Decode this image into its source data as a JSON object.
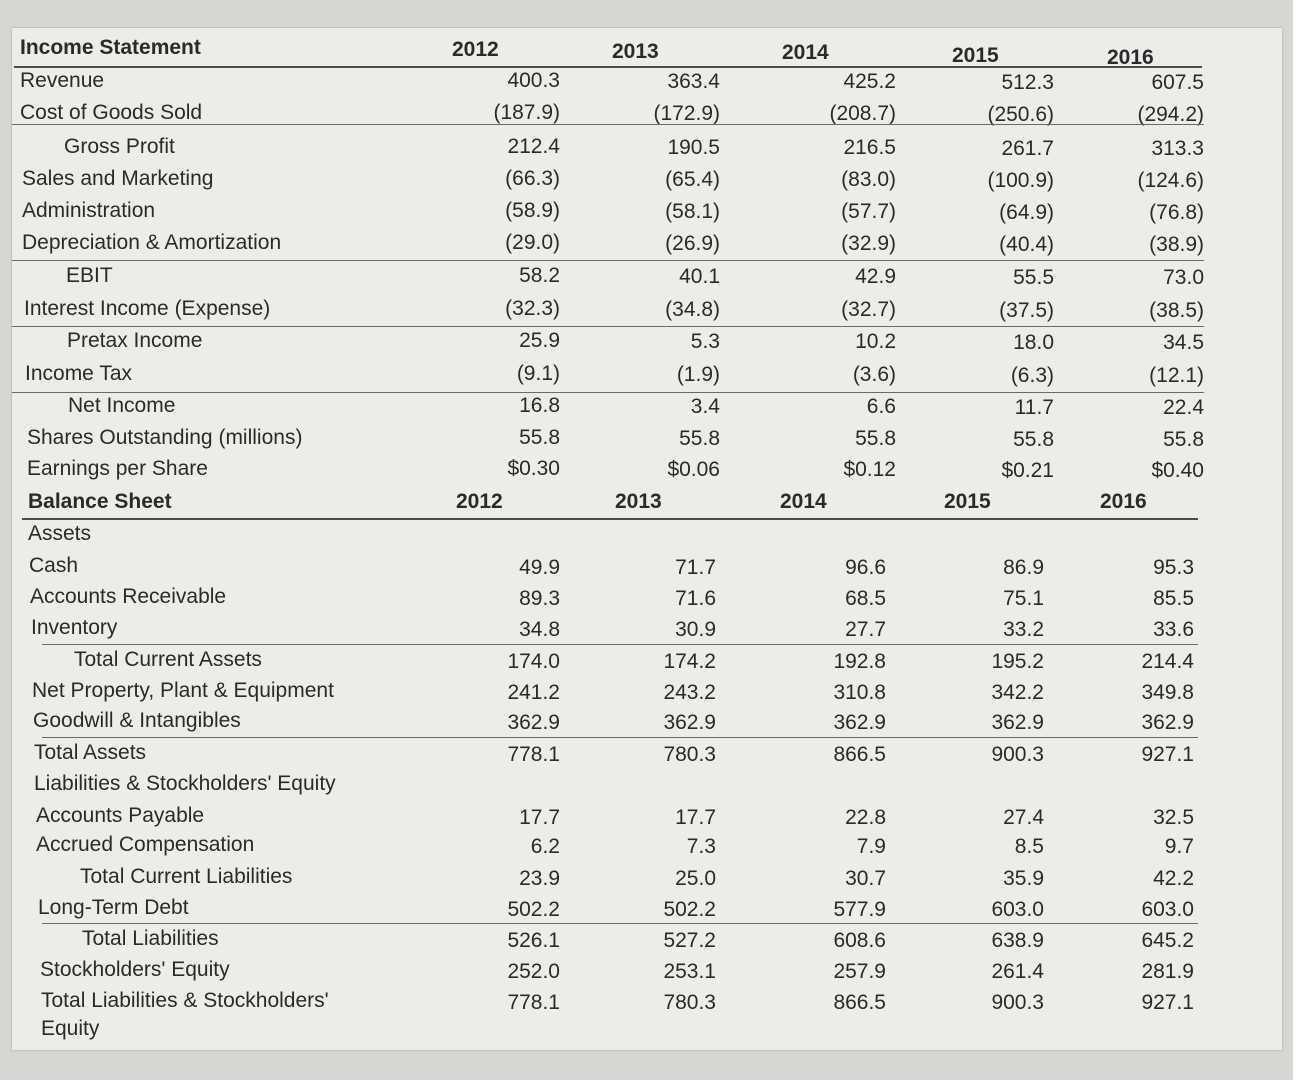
{
  "years": [
    "2012",
    "2013",
    "2014",
    "2015",
    "2016"
  ],
  "income_statement": {
    "title": "Income Statement",
    "rows": [
      {
        "label": "Revenue",
        "values": [
          "400.3",
          "363.4",
          "425.2",
          "512.3",
          "607.5"
        ]
      },
      {
        "label": "Cost of Goods Sold",
        "values": [
          "(187.9)",
          "(172.9)",
          "(208.7)",
          "(250.6)",
          "(294.2)"
        ]
      },
      {
        "label": "Gross Profit",
        "values": [
          "212.4",
          "190.5",
          "216.5",
          "261.7",
          "313.3"
        ]
      },
      {
        "label": "Sales and Marketing",
        "values": [
          "(66.3)",
          "(65.4)",
          "(83.0)",
          "(100.9)",
          "(124.6)"
        ]
      },
      {
        "label": "Administration",
        "values": [
          "(58.9)",
          "(58.1)",
          "(57.7)",
          "(64.9)",
          "(76.8)"
        ]
      },
      {
        "label": "Depreciation & Amortization",
        "values": [
          "(29.0)",
          "(26.9)",
          "(32.9)",
          "(40.4)",
          "(38.9)"
        ]
      },
      {
        "label": "EBIT",
        "values": [
          "58.2",
          "40.1",
          "42.9",
          "55.5",
          "73.0"
        ]
      },
      {
        "label": "Interest Income (Expense)",
        "values": [
          "(32.3)",
          "(34.8)",
          "(32.7)",
          "(37.5)",
          "(38.5)"
        ]
      },
      {
        "label": "Pretax Income",
        "values": [
          "25.9",
          "5.3",
          "10.2",
          "18.0",
          "34.5"
        ]
      },
      {
        "label": "Income Tax",
        "values": [
          "(9.1)",
          "(1.9)",
          "(3.6)",
          "(6.3)",
          "(12.1)"
        ]
      },
      {
        "label": "Net Income",
        "values": [
          "16.8",
          "3.4",
          "6.6",
          "11.7",
          "22.4"
        ]
      },
      {
        "label": "Shares Outstanding (millions)",
        "values": [
          "55.8",
          "55.8",
          "55.8",
          "55.8",
          "55.8"
        ]
      },
      {
        "label": "Earnings per Share",
        "values": [
          "$0.30",
          "$0.06",
          "$0.12",
          "$0.21",
          "$0.40"
        ]
      }
    ]
  },
  "balance_sheet": {
    "title": "Balance Sheet",
    "rows": [
      {
        "label": "Assets",
        "values": []
      },
      {
        "label": "Cash",
        "values": [
          "49.9",
          "71.7",
          "96.6",
          "86.9",
          "95.3"
        ]
      },
      {
        "label": "Accounts Receivable",
        "values": [
          "89.3",
          "71.6",
          "68.5",
          "75.1",
          "85.5"
        ]
      },
      {
        "label": "Inventory",
        "values": [
          "34.8",
          "30.9",
          "27.7",
          "33.2",
          "33.6"
        ]
      },
      {
        "label": "Total Current Assets",
        "values": [
          "174.0",
          "174.2",
          "192.8",
          "195.2",
          "214.4"
        ]
      },
      {
        "label": "Net Property, Plant & Equipment",
        "values": [
          "241.2",
          "243.2",
          "310.8",
          "342.2",
          "349.8"
        ]
      },
      {
        "label": "Goodwill & Intangibles",
        "values": [
          "362.9",
          "362.9",
          "362.9",
          "362.9",
          "362.9"
        ]
      },
      {
        "label": "Total Assets",
        "values": [
          "778.1",
          "780.3",
          "866.5",
          "900.3",
          "927.1"
        ]
      },
      {
        "label": "Liabilities & Stockholders' Equity",
        "values": []
      },
      {
        "label": "Accounts Payable",
        "values": [
          "17.7",
          "17.7",
          "22.8",
          "27.4",
          "32.5"
        ]
      },
      {
        "label": "Accrued Compensation",
        "values": [
          "6.2",
          "7.3",
          "7.9",
          "8.5",
          "9.7"
        ]
      },
      {
        "label": "Total Current Liabilities",
        "values": [
          "23.9",
          "25.0",
          "30.7",
          "35.9",
          "42.2"
        ]
      },
      {
        "label": "Long-Term Debt",
        "values": [
          "502.2",
          "502.2",
          "577.9",
          "603.0",
          "603.0"
        ]
      },
      {
        "label": "Total Liabilities",
        "values": [
          "526.1",
          "527.2",
          "608.6",
          "638.9",
          "645.2"
        ]
      },
      {
        "label": "Stockholders' Equity",
        "values": [
          "252.0",
          "253.1",
          "257.9",
          "261.4",
          "281.9"
        ]
      },
      {
        "label": "Total Liabilities & Stockholders'",
        "values": [
          "778.1",
          "780.3",
          "866.5",
          "900.3",
          "927.1"
        ]
      },
      {
        "label": "Equity",
        "values": []
      }
    ]
  }
}
